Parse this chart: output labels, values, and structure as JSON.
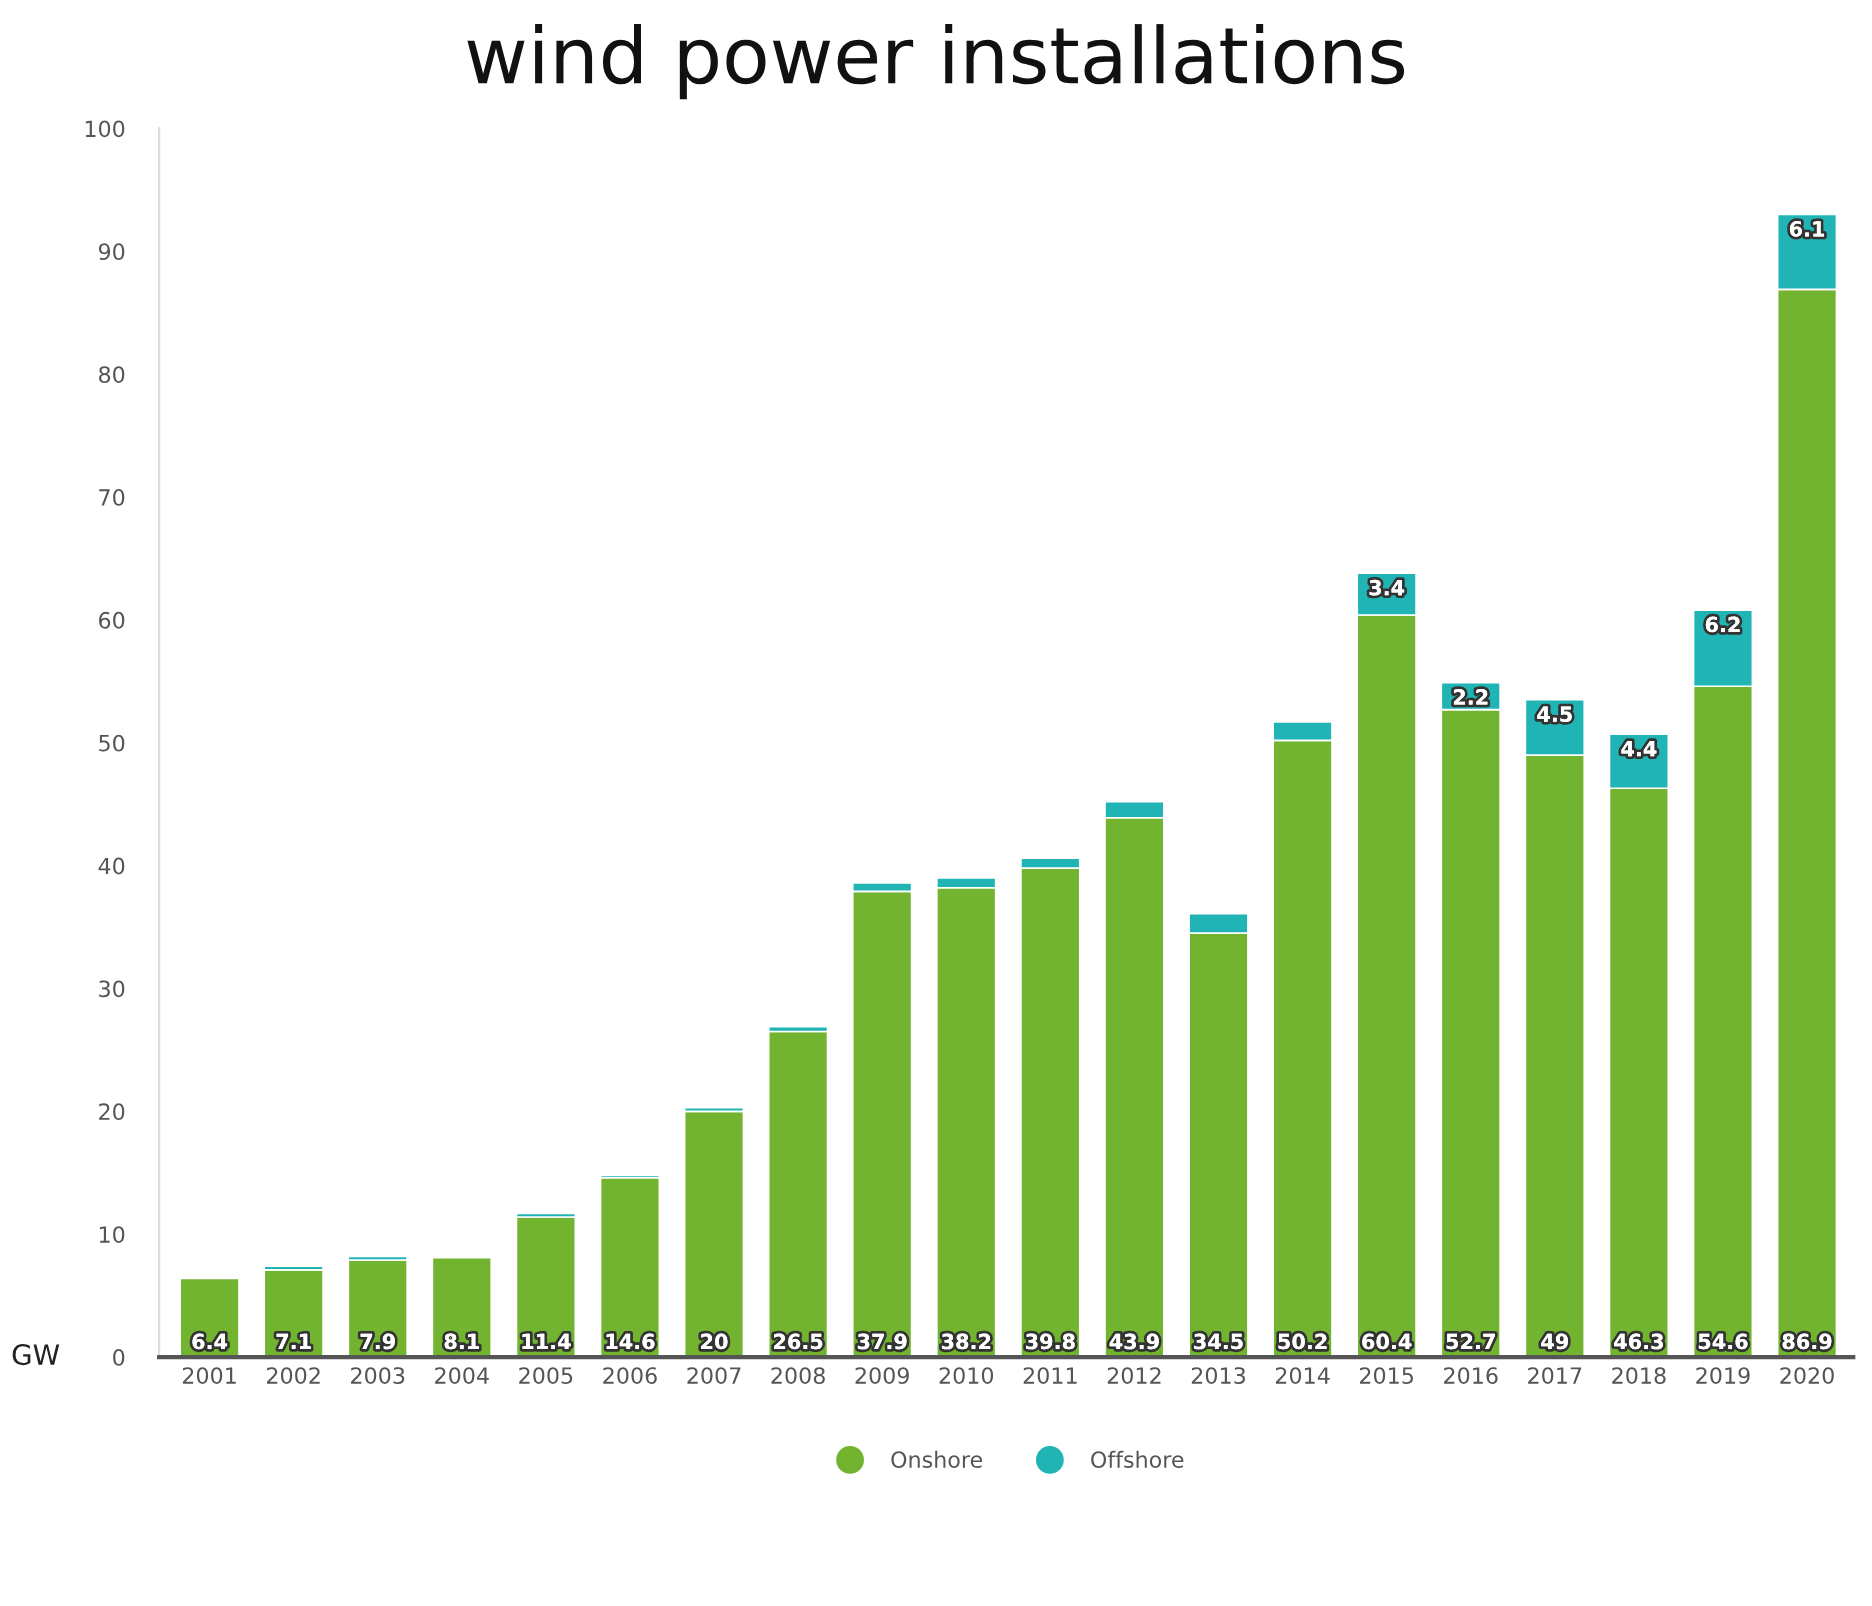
{
  "chart_data": {
    "type": "bar",
    "stacked": true,
    "title": "wind power installations",
    "ylabel": "GW",
    "categories": [
      "2001",
      "2002",
      "2003",
      "2004",
      "2005",
      "2006",
      "2007",
      "2008",
      "2009",
      "2010",
      "2011",
      "2012",
      "2013",
      "2014",
      "2015",
      "2016",
      "2017",
      "2018",
      "2019",
      "2020"
    ],
    "series": [
      {
        "name": "Onshore",
        "color": "#72b32f",
        "values": [
          6.4,
          7.1,
          7.9,
          8.1,
          11.4,
          14.6,
          20,
          26.5,
          37.9,
          38.2,
          39.8,
          43.9,
          34.5,
          50.2,
          60.4,
          52.7,
          49,
          46.3,
          54.6,
          86.9
        ],
        "value_labels": [
          "6.4",
          "7.1",
          "7.9",
          "8.1",
          "11.4",
          "14.6",
          "20",
          "26.5",
          "37.9",
          "38.2",
          "39.8",
          "43.9",
          "34.5",
          "50.2",
          "60.4",
          "52.7",
          "49",
          "46.3",
          "54.6",
          "86.9"
        ]
      },
      {
        "name": "Offshore",
        "color": "#20b4b4",
        "values": [
          null,
          0.3,
          0.3,
          null,
          0.3,
          0.2,
          0.3,
          0.4,
          0.7,
          0.8,
          0.8,
          1.3,
          1.6,
          1.5,
          3.4,
          2.2,
          4.5,
          4.4,
          6.2,
          6.1
        ],
        "value_labels": [
          null,
          null,
          null,
          null,
          null,
          null,
          null,
          null,
          null,
          null,
          null,
          null,
          null,
          null,
          "3.4",
          "2.2",
          "4.5",
          "4.4",
          "6.2",
          "6.1"
        ]
      }
    ],
    "ylim": [
      0,
      100
    ],
    "yticks": [
      0,
      10,
      20,
      30,
      40,
      50,
      60,
      70,
      80,
      90,
      100
    ],
    "grid": false,
    "legend": "bottom"
  }
}
